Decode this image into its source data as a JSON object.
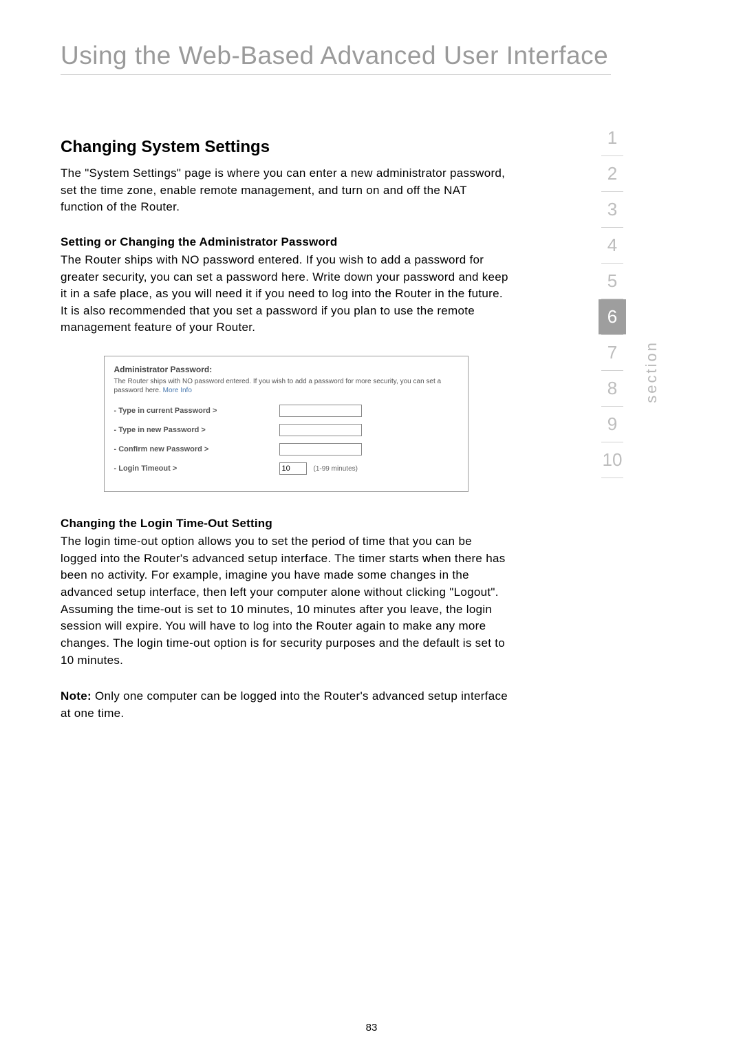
{
  "page": {
    "title": "Using the Web-Based Advanced User Interface",
    "number": "83"
  },
  "sections": {
    "main_heading": "Changing System Settings",
    "intro": "The \"System Settings\" page is where you can enter a new administrator password, set the time zone, enable remote management, and turn on and off the NAT function of the Router.",
    "admin_pw_heading": "Setting or Changing the Administrator Password",
    "admin_pw_body": "The Router ships with NO password entered. If you wish to add a password for greater security, you can set a password here. Write down your password and keep it in a safe place, as you will need it if you need to log into the Router in the future. It is also recommended that you set a password if you plan to use the remote management feature of your Router.",
    "timeout_heading": "Changing the Login Time-Out Setting",
    "timeout_body": "The login time-out option allows you to set the period of time that you can be logged into the Router's advanced setup interface. The timer starts when there has been no activity. For example, imagine you have made some changes in the advanced setup interface, then left your computer alone without clicking \"Logout\". Assuming the time-out is set to 10 minutes, 10 minutes after you leave, the login session will expire. You will have to log into the Router again to make any more changes. The login time-out option is for security purposes and the default is set to 10 minutes.",
    "note_label": "Note:",
    "note_body": " Only one computer can be logged into the Router's advanced setup interface at one time."
  },
  "screenshot": {
    "title": "Administrator Password:",
    "intro_a": "The Router ships with NO password entered. If you wish to add a password for more security, you can set a password here. ",
    "more_info": "More Info",
    "row1": "- Type in current Password >",
    "row2": "- Type in new Password >",
    "row3": "- Confirm new Password >",
    "row4": "- Login Timeout >",
    "timeout_value": "10",
    "timeout_hint": "(1-99 minutes)"
  },
  "nav": {
    "items": [
      "1",
      "2",
      "3",
      "4",
      "5",
      "6",
      "7",
      "8",
      "9",
      "10"
    ],
    "active_index": 5,
    "label": "section"
  },
  "colors": {
    "page_title": "#9a9a9a",
    "body_text": "#000000",
    "nav_inactive": "#bdbdbd",
    "nav_active_bg": "#9e9e9e",
    "nav_active_fg": "#ffffff",
    "link": "#4a7ab0"
  }
}
